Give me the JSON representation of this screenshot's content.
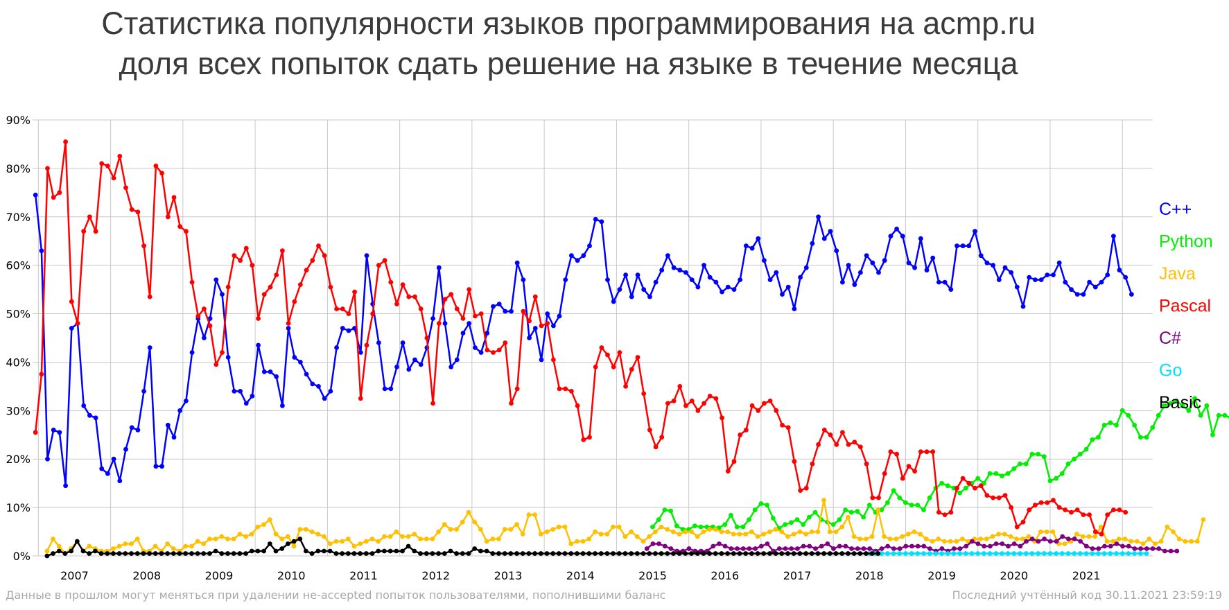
{
  "title_line1": "Статистика популярности языков программирования на acmp.ru",
  "title_line2": "доля всех попыток сдать решение на языке в течение месяца",
  "footer_left": "Данные в прошлом могут меняться при удалении не-accepted попыток пользователями, пополнившими баланс",
  "footer_right": "Последний учтённый код 30.11.2021 23:59:19",
  "chart_data": {
    "type": "line",
    "title": "Статистика популярности языков программирования на acmp.ru",
    "subtitle": "доля всех попыток сдать решение на языке в течение месяца",
    "xlabel": "",
    "ylabel": "",
    "x_ticks": [
      "2007",
      "2008",
      "2009",
      "2010",
      "2011",
      "2012",
      "2013",
      "2014",
      "2015",
      "2016",
      "2017",
      "2018",
      "2019",
      "2020",
      "2021"
    ],
    "y_ticks": [
      "0%",
      "10%",
      "20%",
      "30%",
      "40%",
      "50%",
      "60%",
      "70%",
      "80%",
      "90%"
    ],
    "xlim": [
      2006.42,
      2021.92
    ],
    "ylim": [
      0,
      90
    ],
    "grid": true,
    "legend_position": "right",
    "series": [
      {
        "name": "C++",
        "color": "#0000ff",
        "start": 2006.46,
        "values": [
          74.5,
          63,
          20,
          26,
          25.5,
          14.5,
          47,
          48,
          31,
          29,
          28.5,
          18,
          17,
          20,
          15.5,
          22,
          26.5,
          26,
          34,
          43,
          18.5,
          18.5,
          27,
          24.5,
          30,
          32,
          42,
          49,
          45,
          49,
          57,
          54,
          41,
          34,
          34,
          31.5,
          33,
          43.5,
          38,
          38,
          37,
          31,
          47,
          41,
          40,
          37.5,
          35.5,
          35,
          32.5,
          34,
          43,
          47,
          46.5,
          47,
          42,
          62,
          52,
          44,
          34.5,
          34.5,
          39,
          44,
          38.5,
          40.5,
          39.5,
          43,
          49,
          59.5,
          48,
          39,
          40.5,
          46,
          48,
          43,
          42,
          46,
          51.5,
          52,
          50.5,
          50.5,
          60.5,
          57,
          45,
          47,
          40.5,
          50,
          47.5,
          49.5,
          57,
          62,
          61,
          62,
          64,
          69.5,
          69,
          57,
          52.5,
          55,
          58,
          53.5,
          58,
          55,
          53.5,
          56.5,
          59,
          62,
          59.5,
          59,
          58.5,
          57,
          55.5,
          60,
          57.5,
          56.5,
          54.5,
          55.5,
          55,
          57,
          64,
          63.5,
          65.5,
          61,
          57,
          58.5,
          54,
          55.5,
          51,
          57.5,
          59.5,
          64.5,
          70,
          65.5,
          67,
          63,
          56.5,
          60,
          56,
          58.5,
          62,
          60.5,
          58.5,
          61,
          66,
          67.5,
          66,
          60.5,
          59.5,
          65.5,
          59,
          61.5,
          56.5,
          56.5,
          55,
          64,
          64,
          64,
          67,
          62,
          60.5,
          60,
          57,
          59.5,
          58.5,
          55.5,
          51.5,
          57.5,
          57,
          57,
          58,
          58,
          60.5,
          56.5,
          55,
          54,
          54,
          56.5,
          55.5,
          56.5,
          58,
          66,
          59,
          57.5,
          54
        ]
      },
      {
        "name": "Python",
        "color": "#00ee00",
        "start": 2015.0,
        "values": [
          6,
          7.5,
          9.5,
          9.3,
          6.2,
          5.5,
          5.5,
          6.2,
          6,
          6,
          6,
          5.8,
          6.5,
          8.4,
          6,
          6,
          7.5,
          9.5,
          10.8,
          10.5,
          7.8,
          5.7,
          6.5,
          6.9,
          7.5,
          6.5,
          8,
          9,
          7.5,
          7,
          6.5,
          7.5,
          9.5,
          9,
          9.2,
          8,
          10.5,
          9,
          9.5,
          11,
          13.5,
          12,
          11,
          10.5,
          10.5,
          9.5,
          12,
          14,
          15,
          14.5,
          14,
          13,
          14,
          15,
          16,
          15,
          17,
          17,
          16.5,
          17,
          18,
          19,
          19,
          21,
          21,
          20.5,
          15.5,
          16,
          17,
          19,
          20,
          21,
          22,
          24,
          24.5,
          27,
          27.5,
          27,
          30,
          29,
          27,
          24.5,
          24.5,
          26.5,
          29,
          31,
          31.5,
          32,
          31,
          30,
          32.5,
          29,
          31,
          25,
          29,
          29,
          28.5
        ]
      },
      {
        "name": "Java",
        "color": "#ffc000",
        "start": 2006.62,
        "values": [
          1,
          3.5,
          2,
          0.5,
          1.5,
          3,
          1,
          2,
          1.5,
          1,
          1,
          1.5,
          2,
          2.5,
          2.5,
          3.5,
          1,
          1,
          2,
          1,
          2.5,
          1.5,
          1,
          2,
          2,
          3,
          2.5,
          3.5,
          3.5,
          4,
          3.5,
          3.5,
          4.5,
          4,
          4.5,
          6,
          6.5,
          7.5,
          4.5,
          3.5,
          4,
          2,
          5.5,
          5.5,
          5,
          4.5,
          4,
          2.5,
          3,
          3,
          3.5,
          2,
          2.5,
          3,
          3.5,
          3,
          4,
          4,
          5,
          4,
          4,
          4.5,
          3.5,
          3.5,
          3.5,
          5,
          6.5,
          5.5,
          5.5,
          7,
          9,
          7,
          5.5,
          3,
          3.5,
          3.5,
          5.5,
          5.5,
          6.5,
          4.5,
          8.5,
          8.5,
          4.5,
          5,
          5.5,
          6,
          6,
          2.5,
          3,
          3,
          3.5,
          5,
          4.5,
          4.5,
          6,
          6,
          4,
          5,
          4,
          3,
          4,
          5,
          6,
          5.5,
          5,
          4.5,
          5,
          5,
          4,
          5,
          5.5,
          5.5,
          5,
          5,
          4.5,
          4.5,
          4.5,
          5,
          4,
          4.5,
          5,
          5.5,
          5,
          4,
          4.5,
          5,
          4.5,
          5,
          5,
          11.5,
          5,
          5,
          6,
          8,
          4,
          3.5,
          3.5,
          4,
          9.5,
          4,
          3.5,
          3.5,
          4,
          4.5,
          5,
          4.5,
          3.5,
          3,
          3.5,
          3,
          3,
          3,
          3.5,
          3,
          3.5,
          3.5,
          3.5,
          4,
          4.5,
          4.5,
          4,
          3.5,
          3.5,
          4,
          3,
          5,
          5,
          5,
          2.5,
          2.5,
          3,
          4.5,
          4,
          4,
          4,
          6,
          3,
          3,
          3.5,
          3.5,
          3,
          3,
          2.5,
          3.5,
          2.5,
          3,
          6,
          5,
          3.5,
          3,
          3,
          3,
          7.5
        ]
      },
      {
        "name": "Pascal",
        "color": "#ff0000",
        "start": 2006.46,
        "values": [
          25.5,
          37.5,
          80,
          74,
          75,
          85.5,
          52.5,
          48,
          67,
          70,
          67,
          81,
          80.5,
          78,
          82.5,
          76,
          71.5,
          71,
          64,
          53.5,
          80.5,
          79,
          70,
          74,
          68,
          67,
          56.5,
          49.5,
          51,
          47.5,
          39.5,
          42,
          55.5,
          62,
          61,
          63.5,
          60,
          49,
          54,
          55.5,
          58,
          63,
          48,
          52.5,
          56,
          59,
          61,
          64,
          62,
          55.5,
          51,
          51,
          50,
          54.5,
          32.5,
          43.5,
          50,
          60,
          61,
          56.5,
          52,
          56,
          53.5,
          53.5,
          51,
          45,
          31.5,
          48,
          53,
          54,
          51,
          49,
          55,
          49.5,
          50,
          42.5,
          42,
          42.5,
          44,
          31.5,
          34.5,
          50.5,
          48.5,
          53.5,
          47.5,
          48,
          40.5,
          34.5,
          34.5,
          34,
          31,
          24,
          24.5,
          39,
          43,
          41.5,
          39,
          42,
          35,
          38.5,
          41,
          33.5,
          26,
          22.5,
          24.5,
          31.5,
          32,
          35,
          31,
          32,
          30,
          31.5,
          33,
          32.5,
          28.5,
          17.5,
          19.5,
          25,
          26,
          31,
          30,
          31.5,
          32,
          30,
          27,
          26.5,
          19.5,
          13.5,
          14,
          19,
          23,
          26,
          25,
          23,
          25.5,
          23,
          23.5,
          22.5,
          19,
          12,
          12,
          17,
          21.5,
          21,
          16,
          18.5,
          17.5,
          21.5,
          21.5,
          21.5,
          9,
          8.5,
          9,
          14,
          16,
          15,
          14,
          14.5,
          12.5,
          12,
          12,
          12.5,
          10,
          6,
          7,
          9.5,
          10.5,
          11,
          11,
          11.5,
          10,
          9.5,
          9,
          9.5,
          8.5,
          8.5,
          5,
          4.5,
          8.5,
          9.5,
          9.5,
          9
        ]
      },
      {
        "name": "C#",
        "color": "#800080",
        "start": 2014.92,
        "values": [
          1.5,
          2.5,
          2.5,
          2,
          1.5,
          1,
          1,
          1.5,
          1,
          1,
          1,
          2,
          2.5,
          2,
          1.5,
          1.5,
          1.5,
          1.5,
          1.5,
          2,
          2.5,
          1,
          1.5,
          1.5,
          1.5,
          1.5,
          2,
          2,
          1.5,
          2,
          2.5,
          1.5,
          2,
          2,
          1.5,
          1.5,
          1.5,
          1.5,
          1,
          1.5,
          2,
          1.5,
          1.5,
          2,
          2,
          2,
          2,
          1.5,
          1,
          1.5,
          1,
          1.5,
          1.5,
          2,
          3,
          2.5,
          2,
          2,
          2.5,
          2.5,
          2,
          2.5,
          2,
          3,
          3.5,
          3,
          3.5,
          3,
          3,
          4,
          3.5,
          3.5,
          3,
          2,
          1.5,
          1.5,
          2,
          2,
          2.5,
          2,
          2,
          1.5,
          1.5,
          1.5,
          1.5,
          1.5,
          1,
          1,
          1
        ]
      },
      {
        "name": "Go",
        "color": "#00e0ff",
        "start": 2018.0,
        "values": [
          0.5,
          0.5,
          0.5,
          0.5,
          0.5,
          0.5,
          0.5,
          0.5,
          0.5,
          0.5,
          0.5,
          0.5,
          0.5,
          0.5,
          0.5,
          0.5,
          0.5,
          0.5,
          0.5,
          0.5,
          0.5,
          0.5,
          0.5,
          0.5,
          0.5,
          0.5,
          0.5,
          0.5,
          0.5,
          0.5,
          0.5,
          0.5,
          0.5,
          0.5,
          0.5,
          0.5,
          0.5,
          0.5,
          0.5,
          0.5,
          0.5,
          0.5,
          0.5,
          0.5,
          0.5,
          0.5,
          0.5
        ]
      },
      {
        "name": "Basic",
        "color": "#000000",
        "start": 2006.62,
        "values": [
          0,
          0.5,
          1,
          0.5,
          1,
          3,
          1,
          0.5,
          1,
          0.5,
          0.5,
          0.5,
          0.5,
          0.5,
          0.5,
          0.5,
          0.5,
          0.5,
          0.5,
          0.5,
          0.5,
          0.5,
          0.5,
          0.5,
          0.5,
          0.5,
          0.5,
          0.5,
          1,
          0.5,
          0.5,
          0.5,
          0.5,
          0.5,
          1,
          1,
          1,
          2.5,
          1,
          1.5,
          2.5,
          3,
          3.5,
          1,
          0.5,
          1,
          1,
          1,
          0.5,
          0.5,
          0.5,
          0.5,
          0.5,
          0.5,
          0.5,
          1,
          1,
          1,
          1,
          1,
          2,
          1,
          0.5,
          0.5,
          0.5,
          0.5,
          0.5,
          1,
          0.5,
          0.5,
          0.5,
          1.5,
          1,
          1,
          0.5,
          0.5,
          0.5,
          0.5,
          0.5,
          0.5,
          0.5,
          0.5,
          0.5,
          0.5,
          0.5,
          0.5,
          0.5,
          0.5,
          0.5,
          0.5,
          0.5,
          0.5,
          0.5,
          0.5,
          0.5,
          0.5,
          0.5,
          0.5,
          0.5,
          0.5,
          0.5,
          0.5,
          0.5,
          0.5,
          0.5,
          0.5,
          0.5,
          0.5,
          0.5,
          0.5,
          0.5,
          0.5,
          0.5,
          0.5,
          0.5,
          0.5,
          0.5,
          0.5,
          0.5,
          0.5,
          0.5,
          0.5,
          0.5,
          0.5,
          0.5,
          0.5,
          0.5,
          0.5,
          0.5,
          0.5,
          0.5,
          0.5,
          0.5,
          0.5,
          0.5,
          0.5,
          0.5,
          0.5,
          0.5
        ]
      }
    ]
  }
}
